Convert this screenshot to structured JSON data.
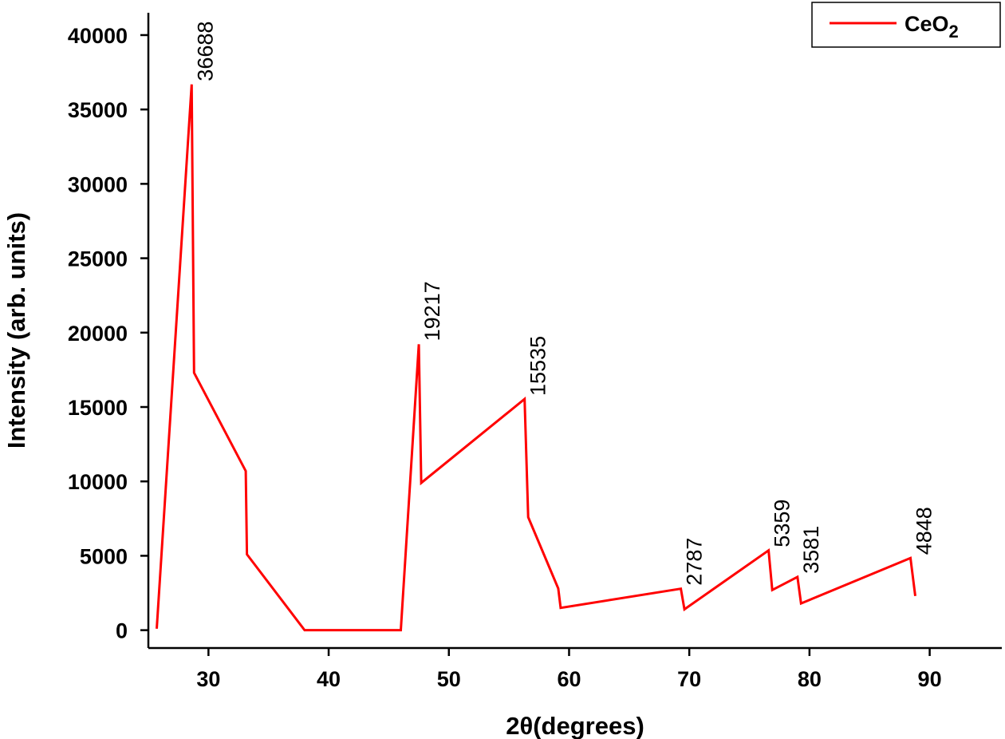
{
  "chart_data": {
    "type": "line",
    "title": "",
    "xlabel": "2θ(degrees)",
    "ylabel": "Intensity (arb. units)",
    "xlim": [
      25,
      96
    ],
    "ylim": [
      -1200,
      41500
    ],
    "xticks": [
      30,
      40,
      50,
      60,
      70,
      80,
      90
    ],
    "yticks": [
      0,
      5000,
      10000,
      15000,
      20000,
      25000,
      30000,
      35000,
      40000
    ],
    "grid": false,
    "legend": {
      "position": "top-right",
      "entries": [
        {
          "name": "CeO2",
          "base": "CeO",
          "subscript": "2",
          "color": "#ff0000"
        }
      ]
    },
    "series": [
      {
        "name": "CeO2",
        "color": "#ff0000",
        "points": [
          [
            25.7,
            100
          ],
          [
            28.6,
            36688
          ],
          [
            28.8,
            17300
          ],
          [
            33.1,
            10700
          ],
          [
            33.2,
            5100
          ],
          [
            38.0,
            0
          ],
          [
            46.0,
            0
          ],
          [
            47.5,
            19217
          ],
          [
            47.7,
            9900
          ],
          [
            56.3,
            15535
          ],
          [
            56.6,
            7600
          ],
          [
            59.1,
            2800
          ],
          [
            59.3,
            1500
          ],
          [
            69.3,
            2787
          ],
          [
            69.6,
            1400
          ],
          [
            76.6,
            5359
          ],
          [
            76.9,
            2700
          ],
          [
            79.0,
            3581
          ],
          [
            79.3,
            1800
          ],
          [
            88.4,
            4848
          ],
          [
            88.8,
            2300
          ]
        ]
      }
    ],
    "annotations": [
      {
        "text": "36688",
        "x": 28.6,
        "y": 36688
      },
      {
        "text": "19217",
        "x": 47.5,
        "y": 19217
      },
      {
        "text": "15535",
        "x": 56.3,
        "y": 15535
      },
      {
        "text": "2787",
        "x": 69.3,
        "y": 2787
      },
      {
        "text": "5359",
        "x": 76.6,
        "y": 5359
      },
      {
        "text": "3581",
        "x": 79.0,
        "y": 3581
      },
      {
        "text": "4848",
        "x": 88.4,
        "y": 4848
      }
    ]
  }
}
